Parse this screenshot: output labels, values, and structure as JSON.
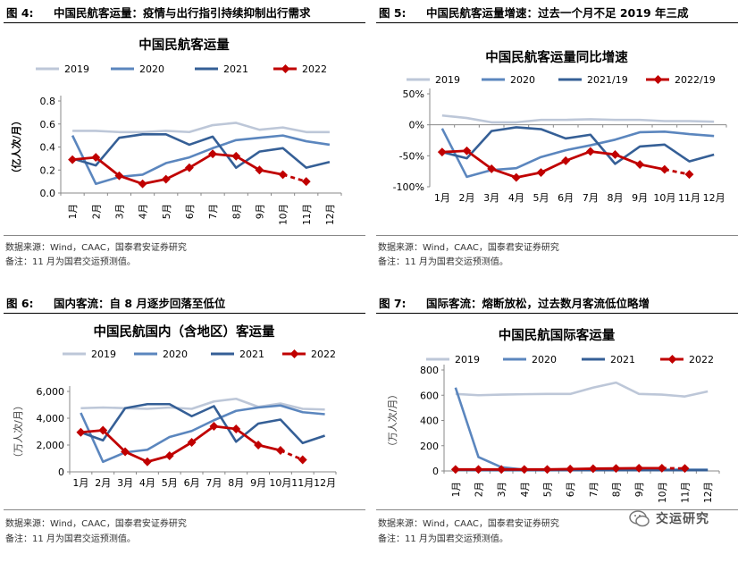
{
  "colors": {
    "c2019": "#BDC7D8",
    "c2020": "#5B86BE",
    "c2021": "#355F96",
    "c2022": "#C00000"
  },
  "panels": [
    {
      "label": "图 4:",
      "header": "中国民航客运量：疫情与出行指引持续抑制出行需求",
      "source": "数据来源：Wind，CAAC，国泰君安证券研究",
      "remark": "备注：11 月为国君交运预测值。"
    },
    {
      "label": "图 5:",
      "header": "中国民航客运量增速：过去一个月不足 2019 年三成",
      "source": "数据来源：Wind，CAAC，国泰君安证券研究",
      "remark": "备注：11 月为国君交运预测值。"
    },
    {
      "label": "图 6:",
      "header": "国内客流：自 8 月逐步回落至低位",
      "source": "数据来源：Wind，CAAC，国泰君安证券研究",
      "remark": "备注：11 月为国君交运预测值。"
    },
    {
      "label": "图 7:",
      "header": "国际客流：熔断放松，过去数月客流低位略增",
      "source": "数据来源：Wind，CAAC，国泰君安证券研究",
      "remark": "备注：11 月为国君交运预测值。"
    }
  ],
  "chart_data": [
    {
      "type": "line",
      "title": "中国民航客运量",
      "ylabel": "（亿人次/月）",
      "categories": [
        "1月",
        "2月",
        "3月",
        "4月",
        "5月",
        "6月",
        "7月",
        "8月",
        "9月",
        "10月",
        "11月",
        "12月"
      ],
      "ylim": [
        0,
        0.8
      ],
      "yticks": [
        0,
        0.2,
        0.4,
        0.6,
        0.8
      ],
      "ytick_labels": [
        "0.0",
        "0.2",
        "0.4",
        "0.6",
        "0.8"
      ],
      "series": [
        {
          "name": "2019",
          "key": "c2019",
          "values": [
            0.54,
            0.54,
            0.53,
            0.53,
            0.54,
            0.53,
            0.59,
            0.61,
            0.55,
            0.57,
            0.53,
            0.53
          ]
        },
        {
          "name": "2020",
          "key": "c2020",
          "values": [
            0.5,
            0.08,
            0.14,
            0.16,
            0.26,
            0.31,
            0.39,
            0.46,
            0.48,
            0.5,
            0.45,
            0.42
          ]
        },
        {
          "name": "2021",
          "key": "c2021",
          "values": [
            0.3,
            0.24,
            0.48,
            0.51,
            0.51,
            0.42,
            0.49,
            0.22,
            0.36,
            0.39,
            0.22,
            0.27
          ]
        },
        {
          "name": "2022",
          "key": "c2022",
          "values": [
            0.29,
            0.31,
            0.15,
            0.08,
            0.12,
            0.22,
            0.34,
            0.32,
            0.2,
            0.16,
            0.1,
            null
          ],
          "dash_from": 9,
          "markers": true
        }
      ]
    },
    {
      "type": "line",
      "title": "中国民航客运量同比增速",
      "ylabel": "",
      "categories": [
        "1月",
        "2月",
        "3月",
        "4月",
        "5月",
        "6月",
        "7月",
        "8月",
        "9月",
        "10月",
        "11月",
        "12月"
      ],
      "ylim": [
        -100,
        50
      ],
      "yticks": [
        -100,
        -50,
        0,
        50
      ],
      "ytick_labels": [
        "-100%",
        "-50%",
        "0%",
        "50%"
      ],
      "series": [
        {
          "name": "2019",
          "key": "c2019",
          "values": [
            15,
            11,
            4,
            4,
            8,
            8,
            9,
            8,
            8,
            6,
            6,
            5
          ]
        },
        {
          "name": "2020",
          "key": "c2020",
          "values": [
            -6,
            -84,
            -73,
            -70,
            -52,
            -41,
            -33,
            -24,
            -12,
            -11,
            -15,
            -18
          ]
        },
        {
          "name": "2021/19",
          "key": "c2021",
          "values": [
            -44,
            -54,
            -10,
            -4,
            -7,
            -22,
            -16,
            -63,
            -35,
            -32,
            -59,
            -48
          ]
        },
        {
          "name": "2022/19",
          "key": "c2022",
          "values": [
            -44,
            -42,
            -71,
            -85,
            -77,
            -58,
            -43,
            -48,
            -64,
            -72,
            -80,
            null
          ],
          "dash_from": 9,
          "markers": true
        }
      ]
    },
    {
      "type": "line",
      "title": "中国民航国内（含地区）客运量",
      "ylabel": "（万人次/月）",
      "categories": [
        "1月",
        "2月",
        "3月",
        "4月",
        "5月",
        "6月",
        "7月",
        "8月",
        "9月",
        "10月",
        "11月",
        "12月"
      ],
      "ylim": [
        0,
        6000
      ],
      "yticks": [
        0,
        2000,
        4000,
        6000
      ],
      "ytick_labels": [
        "0",
        "2,000",
        "4,000",
        "6,000"
      ],
      "series": [
        {
          "name": "2019",
          "key": "c2019",
          "values": [
            4750,
            4800,
            4750,
            4700,
            4800,
            4700,
            5250,
            5450,
            4850,
            5100,
            4700,
            4650
          ]
        },
        {
          "name": "2020",
          "key": "c2020",
          "values": [
            4400,
            750,
            1450,
            1650,
            2600,
            3050,
            3850,
            4550,
            4800,
            4950,
            4450,
            4300
          ]
        },
        {
          "name": "2021",
          "key": "c2021",
          "values": [
            2950,
            2350,
            4750,
            5050,
            5050,
            4150,
            4900,
            2250,
            3600,
            3900,
            2150,
            2700
          ]
        },
        {
          "name": "2022",
          "key": "c2022",
          "values": [
            2950,
            3100,
            1500,
            750,
            1200,
            2200,
            3400,
            3200,
            2000,
            1600,
            900,
            null
          ],
          "dash_from": 9,
          "markers": true
        }
      ]
    },
    {
      "type": "line",
      "title": "中国民航国际客运量",
      "ylabel": "（万人次/月）",
      "categories": [
        "1月",
        "2月",
        "3月",
        "4月",
        "5月",
        "6月",
        "7月",
        "8月",
        "9月",
        "10月",
        "11月",
        "12月"
      ],
      "ylim": [
        0,
        800
      ],
      "yticks": [
        0,
        200,
        400,
        600,
        800
      ],
      "ytick_labels": [
        "0",
        "200",
        "400",
        "600",
        "800"
      ],
      "series": [
        {
          "name": "2019",
          "key": "c2019",
          "values": [
            610,
            600,
            605,
            608,
            610,
            610,
            660,
            700,
            610,
            605,
            590,
            630
          ]
        },
        {
          "name": "2020",
          "key": "c2020",
          "values": [
            660,
            110,
            30,
            10,
            10,
            10,
            10,
            10,
            10,
            10,
            10,
            10
          ]
        },
        {
          "name": "2021",
          "key": "c2021",
          "values": [
            8,
            6,
            6,
            6,
            6,
            6,
            6,
            6,
            6,
            6,
            6,
            6
          ]
        },
        {
          "name": "2022",
          "key": "c2022",
          "values": [
            12,
            12,
            12,
            12,
            12,
            15,
            18,
            20,
            22,
            22,
            20,
            null
          ],
          "dash_from": 9,
          "markers": true
        }
      ]
    }
  ],
  "watermark": "交运研究"
}
